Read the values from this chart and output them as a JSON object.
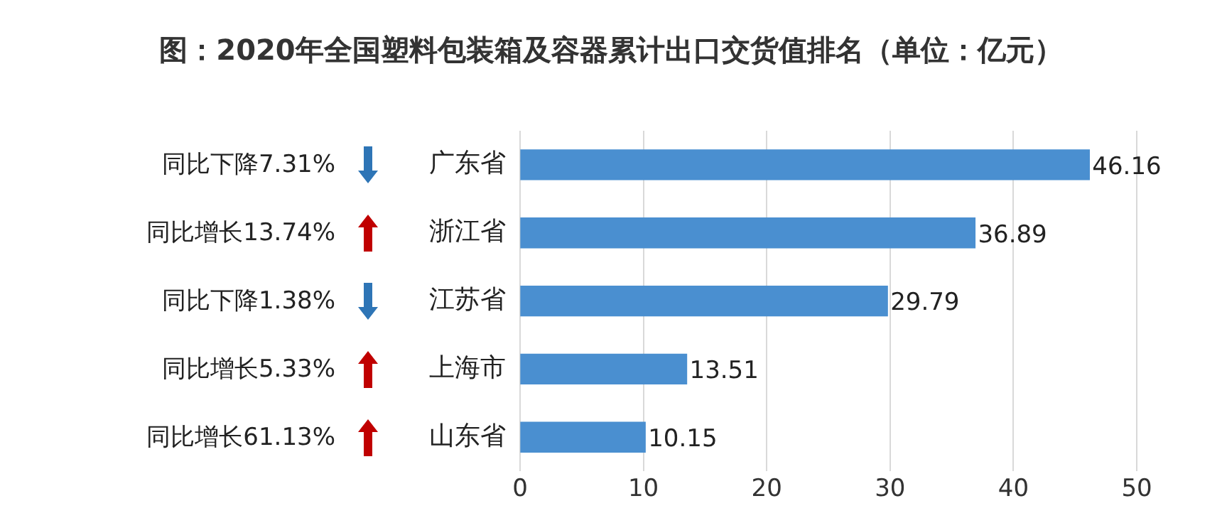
{
  "chart_data": {
    "type": "bar",
    "orientation": "horizontal",
    "title": "图：2020年全国塑料包装箱及容器累计出口交货值排名（单位：亿元）",
    "categories": [
      "广东省",
      "浙江省",
      "江苏省",
      "上海市",
      "山东省"
    ],
    "values": [
      46.16,
      36.89,
      29.79,
      13.51,
      10.15
    ],
    "color": "#4a8fd0",
    "xlim": [
      0,
      50
    ],
    "xticks": [
      0,
      10,
      20,
      30,
      40,
      50
    ],
    "grid": "x",
    "data_labels": true,
    "legend": false,
    "annotations": [
      "同比下降7.31%",
      "同比增长13.74%",
      "同比下降1.38%",
      "同比增长5.33%",
      "同比增长61.13%"
    ]
  }
}
